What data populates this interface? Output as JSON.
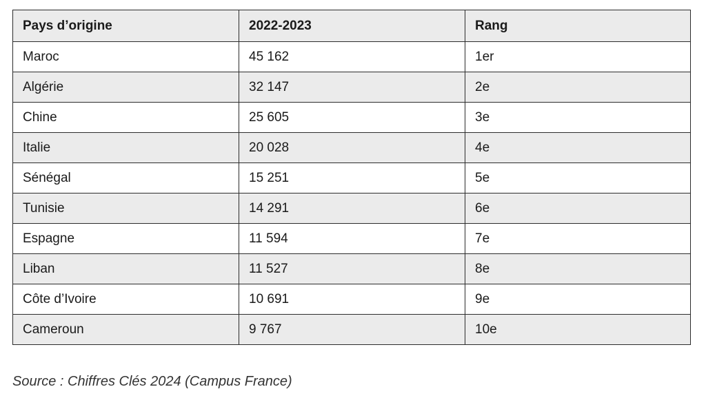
{
  "table": {
    "headers": [
      "Pays d’origine",
      "2022-2023",
      "Rang"
    ],
    "rows": [
      [
        "Maroc",
        "45 162",
        "1er"
      ],
      [
        "Algérie",
        "32 147",
        "2e"
      ],
      [
        "Chine",
        "25 605",
        "3e"
      ],
      [
        "Italie",
        "20 028",
        "4e"
      ],
      [
        "Sénégal",
        "15 251",
        "5e"
      ],
      [
        "Tunisie",
        "14 291",
        "6e"
      ],
      [
        "Espagne",
        "11 594",
        "7e"
      ],
      [
        "Liban",
        "11 527",
        "8e"
      ],
      [
        "Côte d’Ivoire",
        "10 691",
        "9e"
      ],
      [
        "Cameroun",
        "9 767",
        "10e"
      ]
    ]
  },
  "source": "Source : Chiffres Clés 2024 (Campus France)",
  "colors": {
    "header_bg": "#ebebeb",
    "stripe_bg": "#ebebeb",
    "border": "#2b2b2b"
  }
}
